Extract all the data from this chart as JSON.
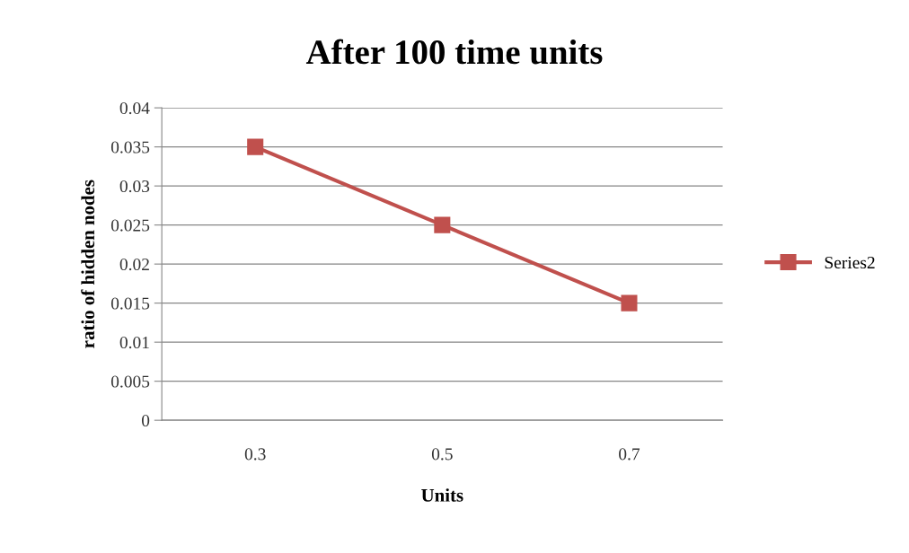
{
  "chart_data": {
    "type": "line",
    "title": "After 100 time units",
    "xlabel": "Units",
    "ylabel": "ratio of hidden nodes",
    "categories": [
      "0.3",
      "0.5",
      "0.7"
    ],
    "series": [
      {
        "name": "Series2",
        "color": "#c0504d",
        "values": [
          0.035,
          0.025,
          0.015
        ]
      }
    ],
    "ylim": [
      0,
      0.04
    ],
    "yticks": [
      0,
      0.005,
      0.01,
      0.015,
      0.02,
      0.025,
      0.03,
      0.035,
      0.04
    ],
    "grid": "y",
    "legend": "right",
    "marker": "square",
    "line_style": "solid"
  }
}
